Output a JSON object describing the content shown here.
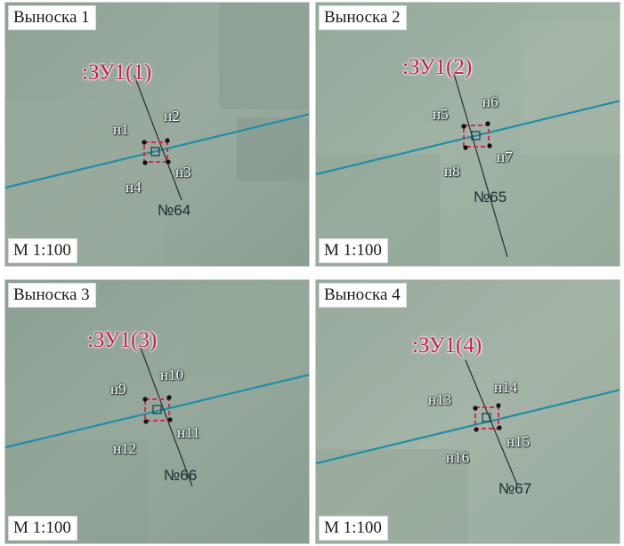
{
  "colors": {
    "parcel_label": "#c4204a",
    "parcel_border": "#d42a52",
    "road_line": "#1e8fa8",
    "leader_line": "#2a2f2c",
    "panel_background": "#8fa89c"
  },
  "panels": [
    {
      "title": "Выноска 1",
      "scale": "М 1:100",
      "parcel_label": ":ЗУ1(1)",
      "points": [
        "н1",
        "н2",
        "н3",
        "н4"
      ],
      "number": "№64"
    },
    {
      "title": "Выноска 2",
      "scale": "М 1:100",
      "parcel_label": ":ЗУ1(2)",
      "points": [
        "н5",
        "н6",
        "н7",
        "н8"
      ],
      "number": "№65"
    },
    {
      "title": "Выноска 3",
      "scale": "М 1:100",
      "parcel_label": ":ЗУ1(3)",
      "points": [
        "н9",
        "н10",
        "н11",
        "н12"
      ],
      "number": "№66"
    },
    {
      "title": "Выноска 4",
      "scale": "М 1:100",
      "parcel_label": ":ЗУ1(4)",
      "points": [
        "н13",
        "н14",
        "н15",
        "н16"
      ],
      "number": "№67"
    }
  ]
}
